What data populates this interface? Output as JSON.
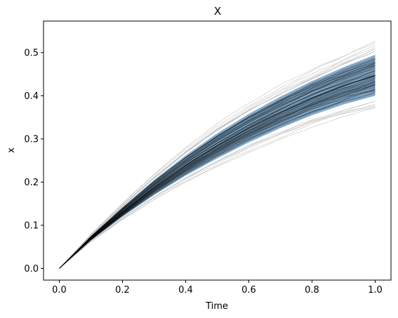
{
  "chart_data": {
    "type": "line",
    "title": "X",
    "xlabel": "Time",
    "ylabel": "x",
    "xlim": [
      -0.05,
      1.05
    ],
    "ylim": [
      -0.027,
      0.573
    ],
    "xticks": [
      0.0,
      0.2,
      0.4,
      0.6,
      0.8,
      1.0
    ],
    "xtick_labels": [
      "0.0",
      "0.2",
      "0.4",
      "0.6",
      "0.8",
      "1.0"
    ],
    "yticks": [
      0.0,
      0.1,
      0.2,
      0.3,
      0.4,
      0.5
    ],
    "ytick_labels": [
      "0.0",
      "0.1",
      "0.2",
      "0.3",
      "0.4",
      "0.5"
    ],
    "grid": false,
    "legend": "none",
    "band": {
      "x": [
        0.0,
        0.1,
        0.2,
        0.3,
        0.4,
        0.5,
        0.6,
        0.7,
        0.8,
        0.9,
        1.0
      ],
      "lower": [
        0.0,
        0.065,
        0.12,
        0.17,
        0.215,
        0.255,
        0.292,
        0.325,
        0.355,
        0.38,
        0.4
      ],
      "upper": [
        0.0,
        0.075,
        0.142,
        0.205,
        0.262,
        0.313,
        0.358,
        0.398,
        0.434,
        0.466,
        0.495
      ]
    },
    "paths": {
      "count": 100,
      "x_end": 1.0,
      "final_value_range": [
        0.37,
        0.545
      ],
      "central_final_value": 0.44
    },
    "colors": {
      "band_fill": "#5b8db8",
      "path_line": "#000000",
      "outer_path_line": "#bdbdbd",
      "mean_line": "#000000"
    }
  }
}
